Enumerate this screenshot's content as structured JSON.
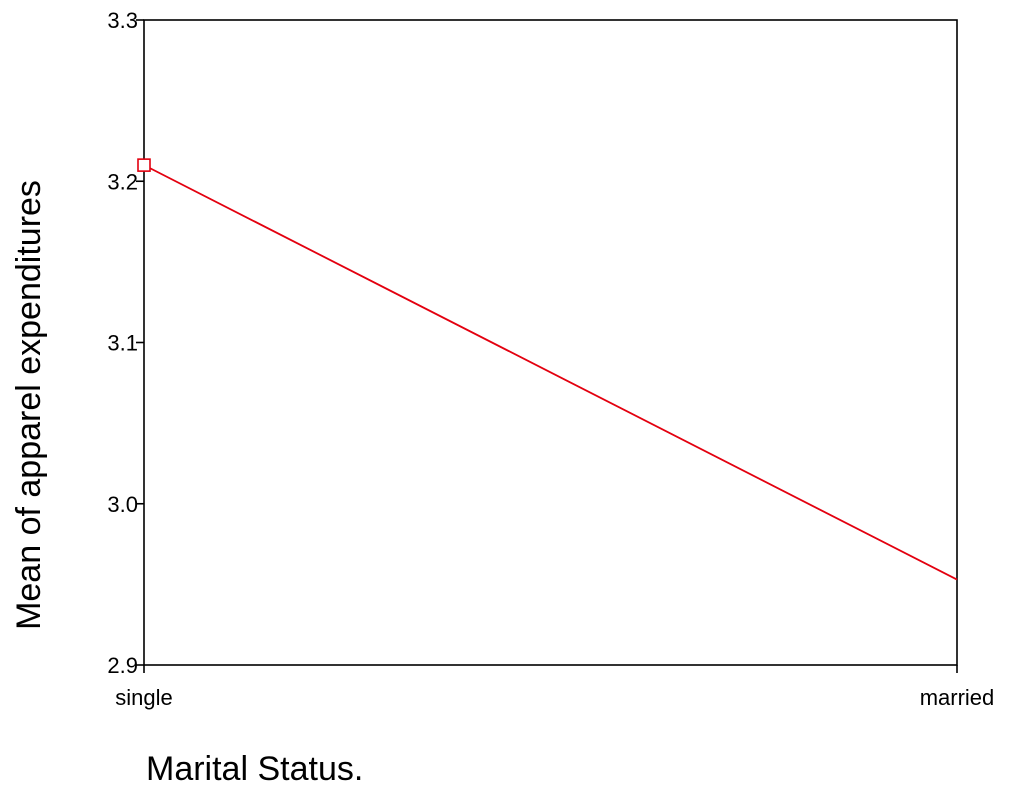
{
  "chart_data": {
    "type": "line",
    "categories": [
      "single",
      "married"
    ],
    "series": [
      {
        "values": [
          3.21,
          2.953
        ],
        "color": "#e3000f",
        "marker": "open-square"
      }
    ],
    "xlabel": "Marital Status.",
    "ylabel": "Mean of apparel expenditures",
    "ylim": [
      2.9,
      3.3
    ],
    "yticks": [
      "2.9",
      "3.0",
      "3.1",
      "3.2",
      "3.3"
    ],
    "grid": false,
    "frame": "box",
    "axis_color": "#000000"
  }
}
